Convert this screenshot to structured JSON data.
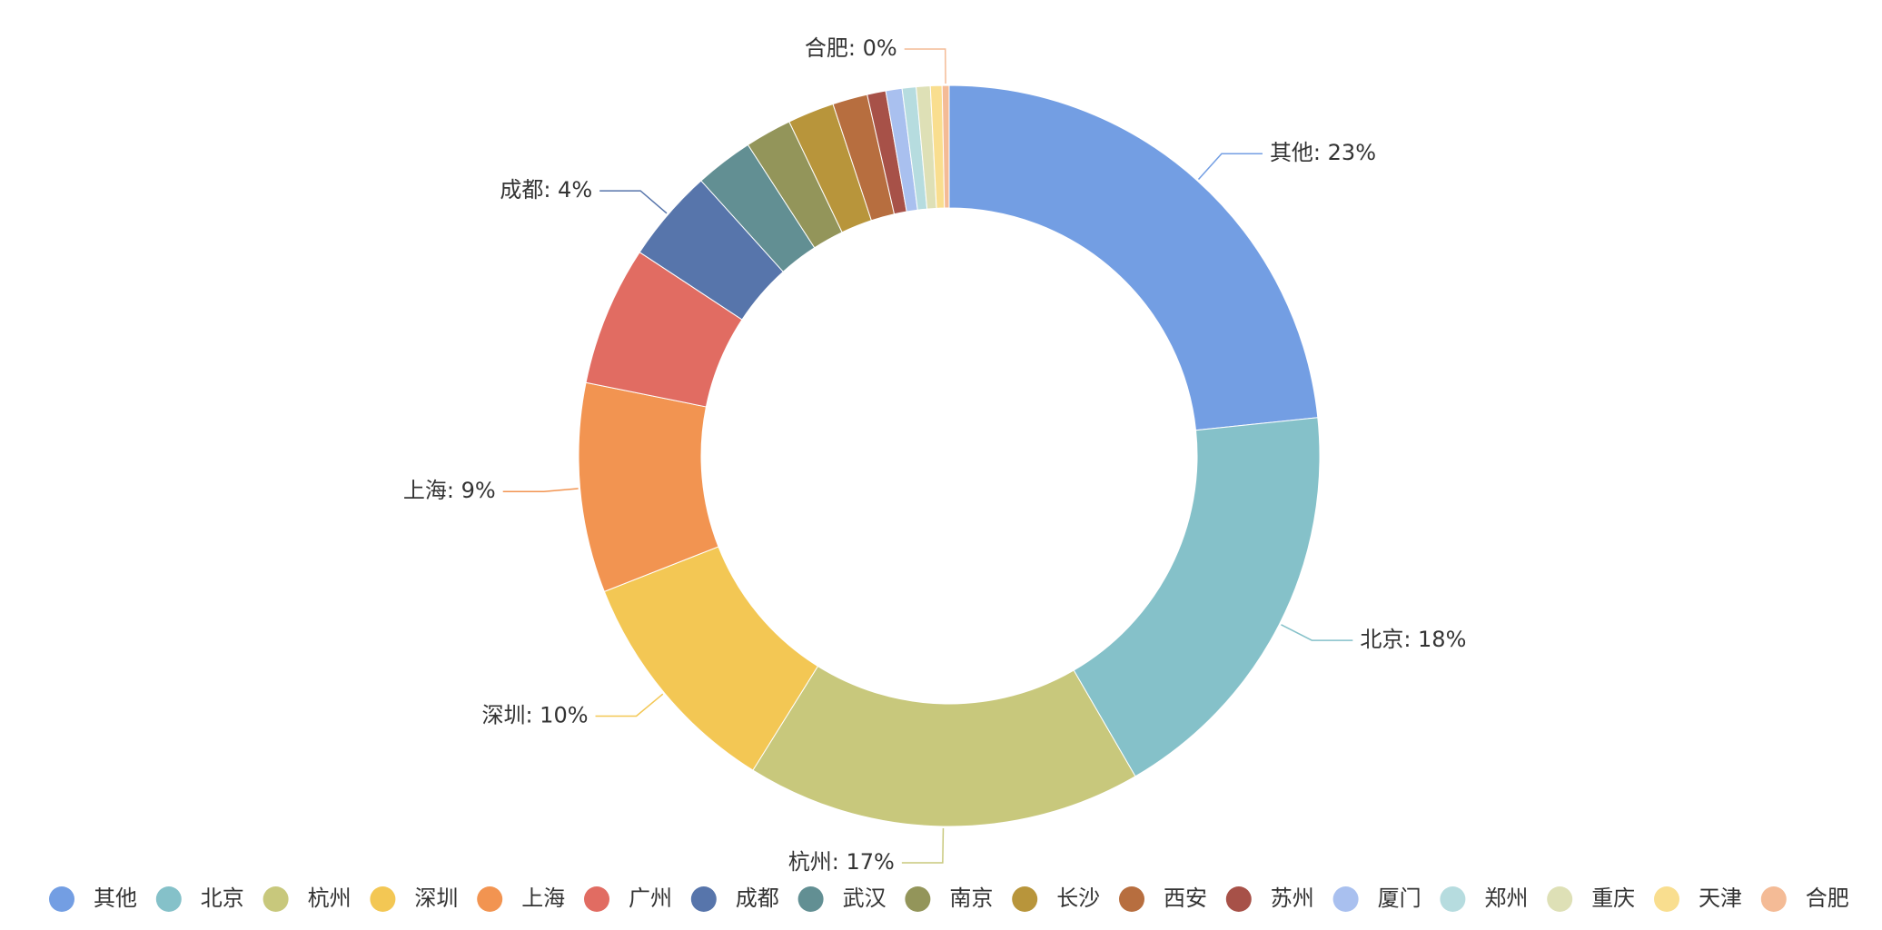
{
  "chart_data": {
    "type": "pie",
    "variant": "donut",
    "title": "",
    "series": [
      {
        "name": "",
        "data": [
          {
            "name": "其他",
            "value": 23,
            "color": "#739ee3"
          },
          {
            "name": "北京",
            "value": 18,
            "color": "#85c1c9"
          },
          {
            "name": "杭州",
            "value": 17,
            "color": "#c8c87c"
          },
          {
            "name": "深圳",
            "value": 10,
            "color": "#f3c754"
          },
          {
            "name": "上海",
            "value": 9,
            "color": "#f29451"
          },
          {
            "name": "广州",
            "value": 6,
            "color": "#e16c62"
          },
          {
            "name": "成都",
            "value": 4,
            "color": "#5775ab"
          },
          {
            "name": "武汉",
            "value": 2.5,
            "color": "#628f93"
          },
          {
            "name": "南京",
            "value": 2,
            "color": "#93955a"
          },
          {
            "name": "长沙",
            "value": 2,
            "color": "#b8953b"
          },
          {
            "name": "西安",
            "value": 1.5,
            "color": "#b76e3f"
          },
          {
            "name": "苏州",
            "value": 0.8,
            "color": "#a75148"
          },
          {
            "name": "厦门",
            "value": 0.7,
            "color": "#a9c0ef"
          },
          {
            "name": "郑州",
            "value": 0.6,
            "color": "#b6dcdf"
          },
          {
            "name": "重庆",
            "value": 0.6,
            "color": "#dee0b6"
          },
          {
            "name": "天津",
            "value": 0.5,
            "color": "#f9de8f"
          },
          {
            "name": "合肥",
            "value": 0.3,
            "color": "#f4bb96"
          }
        ]
      }
    ],
    "labels": [
      {
        "text": "其他: 23%",
        "slice": "其他"
      },
      {
        "text": "北京: 18%",
        "slice": "北京"
      },
      {
        "text": "杭州: 17%",
        "slice": "杭州"
      },
      {
        "text": "深圳: 10%",
        "slice": "深圳"
      },
      {
        "text": "上海: 9%",
        "slice": "上海"
      },
      {
        "text": "成都: 4%",
        "slice": "成都"
      },
      {
        "text": "合肥: 0%",
        "slice": "合肥"
      }
    ],
    "legend": {
      "position": "bottom",
      "items": [
        "其他",
        "北京",
        "杭州",
        "深圳",
        "上海",
        "广州",
        "成都",
        "武汉",
        "南京",
        "长沙",
        "西安",
        "苏州",
        "厦门",
        "郑州",
        "重庆",
        "天津",
        "合肥"
      ]
    }
  }
}
